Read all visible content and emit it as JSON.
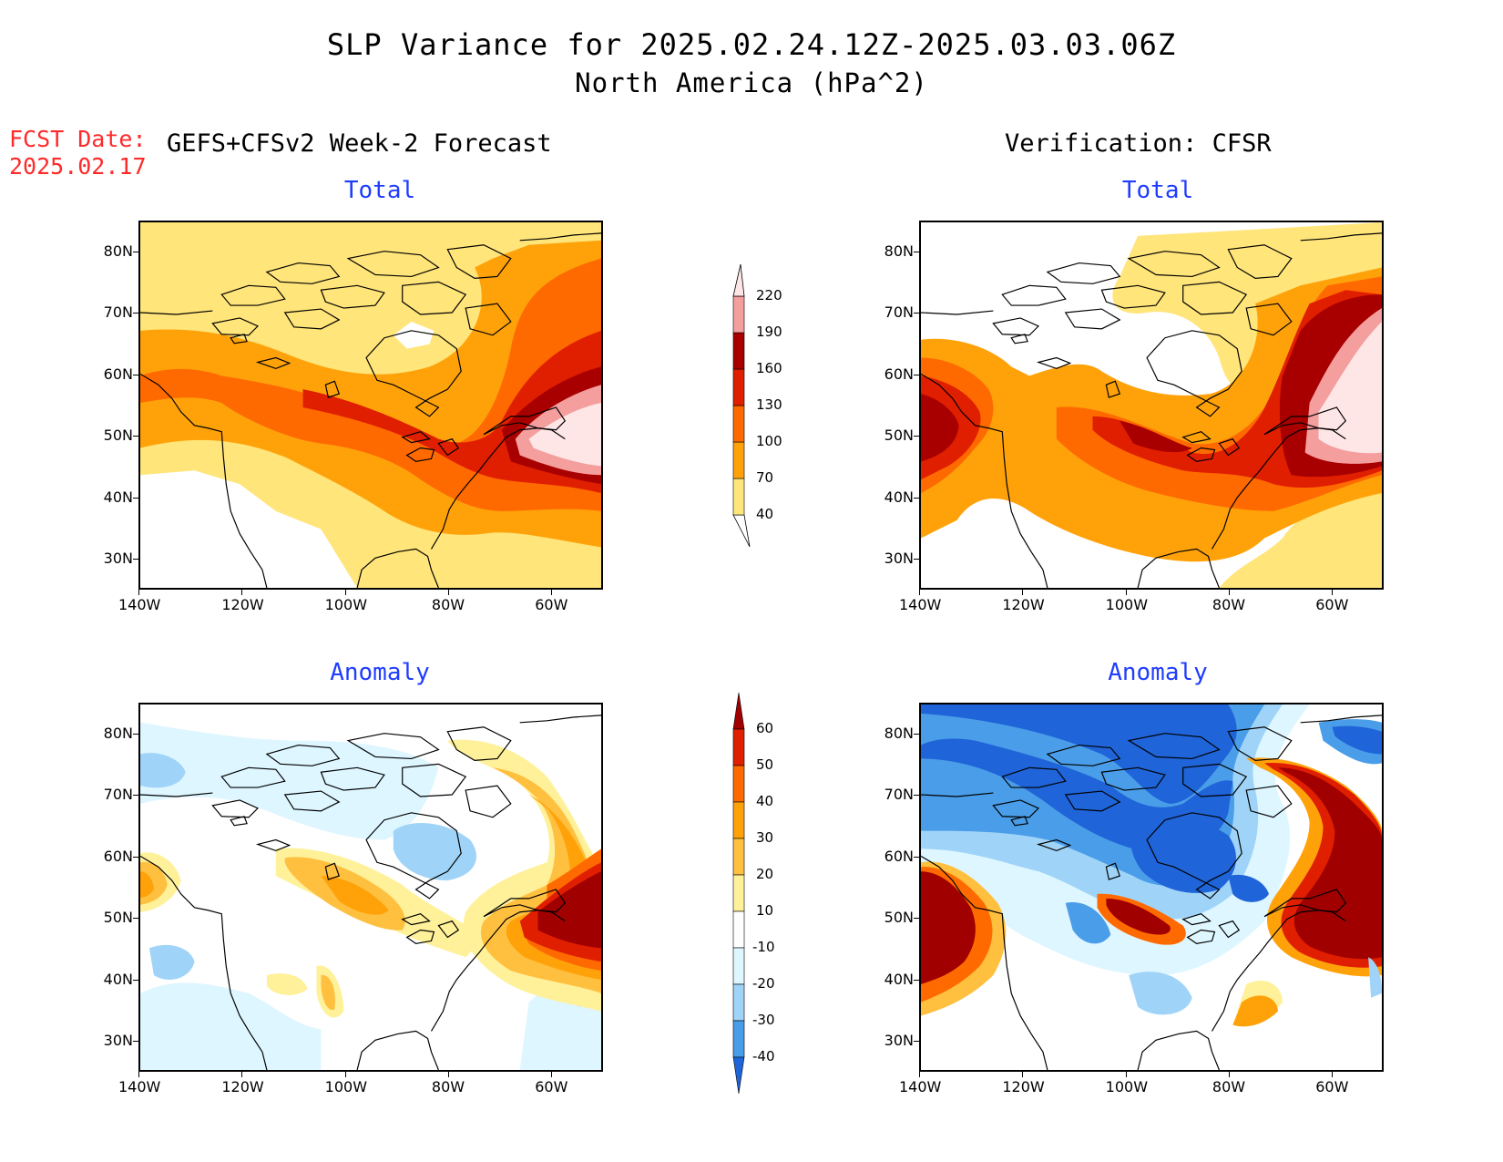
{
  "title": {
    "line1": "SLP Variance for 2025.02.24.12Z-2025.03.03.06Z",
    "line2": "North America (hPa^2)"
  },
  "forecast_date": {
    "label": "FCST Date:",
    "value": "2025.02.17"
  },
  "columns": {
    "left": "GEFS+CFSv2 Week-2 Forecast",
    "right": "Verification: CFSR"
  },
  "panels": {
    "total_left": "Total",
    "total_right": "Total",
    "anom_left": "Anomaly",
    "anom_right": "Anomaly"
  },
  "axes": {
    "lat_ticks": [
      "80N",
      "70N",
      "60N",
      "50N",
      "40N",
      "30N"
    ],
    "lon_ticks": [
      "140W",
      "120W",
      "100W",
      "80W",
      "60W"
    ]
  },
  "colorbars": {
    "total": {
      "levels": [
        "40",
        "70",
        "100",
        "130",
        "160",
        "190",
        "220"
      ],
      "colors": [
        "#ffe57a",
        "#ffa20a",
        "#ff6a00",
        "#e01e00",
        "#a80000",
        "#f49e9e",
        "#ffe6e6"
      ]
    },
    "anomaly": {
      "levels": [
        "60",
        "50",
        "40",
        "30",
        "20",
        "10",
        "-10",
        "-20",
        "-30",
        "-40"
      ],
      "colors": [
        "#a00000",
        "#e01e00",
        "#ff6a00",
        "#ffa20a",
        "#ffc040",
        "#fff19a",
        "#ffffff",
        "#def6ff",
        "#9fd4f8",
        "#4a9de8",
        "#1f64d8"
      ]
    }
  },
  "chart_data": {
    "type": "heatmap",
    "region": "North America",
    "units": "hPa^2",
    "lon_range": [
      "140W",
      "50W"
    ],
    "lat_range": [
      "25N",
      "85N"
    ]
  }
}
